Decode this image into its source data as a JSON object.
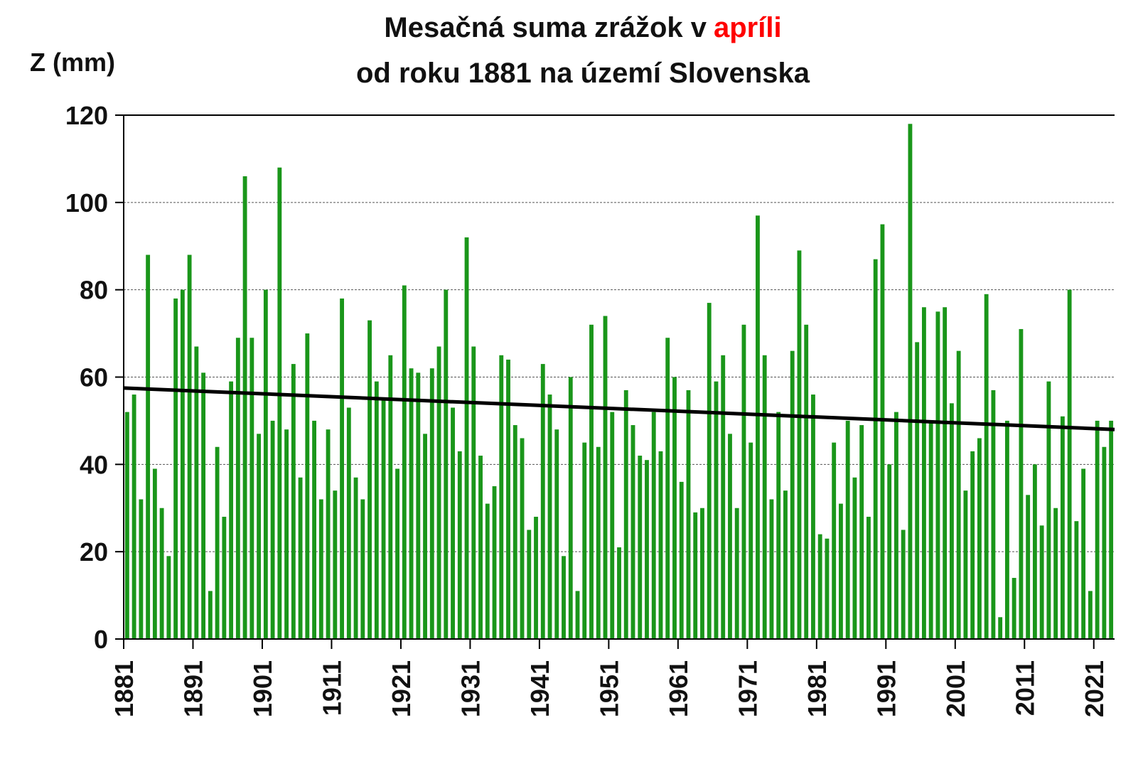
{
  "chart_data": {
    "type": "bar",
    "title": "Mesačná suma zrážok v",
    "title_highlight": "apríli",
    "title_highlight_color": "#ff0000",
    "subtitle": "od roku 1881 na území Slovenska",
    "y_label": "Z (mm)",
    "color": "#1a961a",
    "x": [
      1881,
      1882,
      1883,
      1884,
      1885,
      1886,
      1887,
      1888,
      1889,
      1890,
      1891,
      1892,
      1893,
      1894,
      1895,
      1896,
      1897,
      1898,
      1899,
      1900,
      1901,
      1902,
      1903,
      1904,
      1905,
      1906,
      1907,
      1908,
      1909,
      1910,
      1911,
      1912,
      1913,
      1914,
      1915,
      1916,
      1917,
      1918,
      1919,
      1920,
      1921,
      1922,
      1923,
      1924,
      1925,
      1926,
      1927,
      1928,
      1929,
      1930,
      1931,
      1932,
      1933,
      1934,
      1935,
      1936,
      1937,
      1938,
      1939,
      1940,
      1941,
      1942,
      1943,
      1944,
      1945,
      1946,
      1947,
      1948,
      1949,
      1950,
      1951,
      1952,
      1953,
      1954,
      1955,
      1956,
      1957,
      1958,
      1959,
      1960,
      1961,
      1962,
      1963,
      1964,
      1965,
      1966,
      1967,
      1968,
      1969,
      1970,
      1971,
      1972,
      1973,
      1974,
      1975,
      1976,
      1977,
      1978,
      1979,
      1980,
      1981,
      1982,
      1983,
      1984,
      1985,
      1986,
      1987,
      1988,
      1989,
      1990,
      1991,
      1992,
      1993,
      1994,
      1995,
      1996,
      1997,
      1998,
      1999,
      2000,
      2001,
      2002,
      2003,
      2004,
      2005,
      2006,
      2007,
      2008,
      2009,
      2010,
      2011,
      2012,
      2013,
      2014,
      2015,
      2016,
      2017,
      2018,
      2019,
      2020,
      2021,
      2022,
      2023
    ],
    "values": [
      52,
      56,
      32,
      88,
      39,
      30,
      19,
      78,
      80,
      88,
      67,
      61,
      11,
      44,
      28,
      59,
      69,
      106,
      69,
      47,
      80,
      50,
      108,
      48,
      63,
      37,
      70,
      50,
      32,
      48,
      34,
      78,
      53,
      37,
      32,
      73,
      59,
      55,
      65,
      39,
      81,
      62,
      61,
      47,
      62,
      67,
      80,
      53,
      43,
      92,
      67,
      42,
      31,
      35,
      65,
      64,
      49,
      46,
      25,
      28,
      63,
      56,
      48,
      19,
      60,
      11,
      45,
      72,
      44,
      74,
      52,
      21,
      57,
      49,
      42,
      41,
      52,
      43,
      69,
      60,
      36,
      57,
      29,
      30,
      77,
      59,
      65,
      47,
      30,
      72,
      45,
      97,
      65,
      32,
      52,
      34,
      66,
      89,
      72,
      56,
      24,
      23,
      45,
      31,
      50,
      37,
      49,
      28,
      87,
      95,
      40,
      52,
      25,
      118,
      68,
      76,
      50,
      75,
      76,
      54,
      66,
      34,
      43,
      46,
      79,
      57,
      5,
      50,
      14,
      71,
      33,
      40,
      26,
      59,
      30,
      51,
      80,
      27,
      39,
      11,
      50,
      44,
      50
    ],
    "trend": {
      "color": "#000000",
      "x": [
        1881,
        2024
      ],
      "values": [
        57.5,
        48
      ]
    },
    "xlim": [
      1881,
      2024
    ],
    "xticks": [
      1881,
      1891,
      1901,
      1911,
      1921,
      1931,
      1941,
      1951,
      1961,
      1971,
      1981,
      1991,
      2001,
      2011,
      2021
    ],
    "ylim": [
      0,
      120
    ],
    "yticks": [
      0,
      20,
      40,
      60,
      80,
      100,
      120
    ],
    "grid": true
  }
}
